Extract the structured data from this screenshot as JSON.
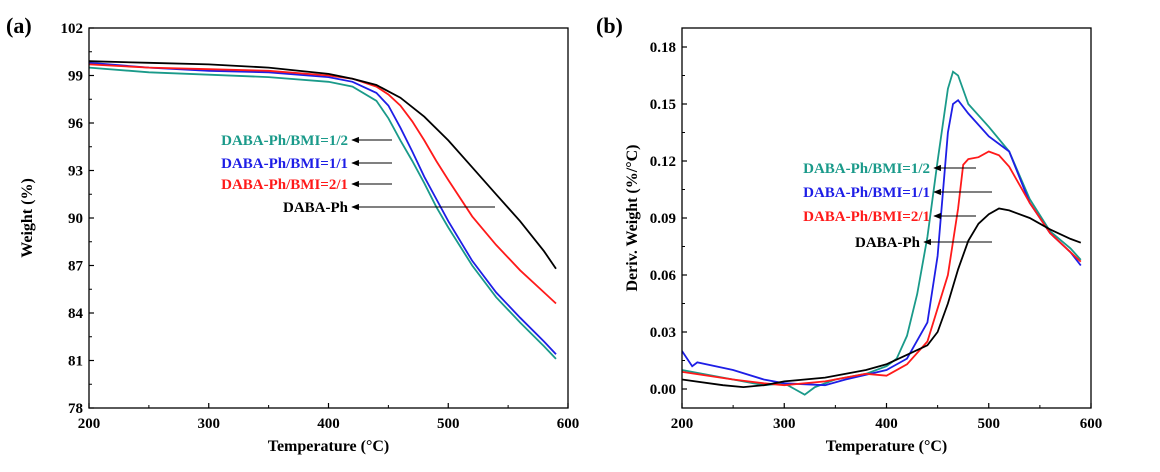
{
  "chart_data": [
    {
      "type": "line",
      "panel_label": "(a)",
      "xlabel": "Temperature (°C)",
      "ylabel": "Weight (%)",
      "xlim": [
        200,
        600
      ],
      "ylim": [
        78,
        102
      ],
      "x_ticks": [
        200,
        300,
        400,
        500,
        600
      ],
      "y_ticks": [
        78,
        81,
        84,
        87,
        90,
        93,
        96,
        99,
        102
      ],
      "grid": false,
      "legend_placement": "center-left, arrows pointing to curves",
      "series": [
        {
          "name": "DABA-Ph/BMI=1/2",
          "color": "#1a9a8a",
          "points": [
            [
              200,
              99.5
            ],
            [
              250,
              99.2
            ],
            [
              300,
              99.05
            ],
            [
              350,
              98.9
            ],
            [
              400,
              98.6
            ],
            [
              420,
              98.3
            ],
            [
              440,
              97.4
            ],
            [
              450,
              96.3
            ],
            [
              460,
              94.9
            ],
            [
              470,
              93.6
            ],
            [
              480,
              92.2
            ],
            [
              490,
              90.7
            ],
            [
              500,
              89.4
            ],
            [
              520,
              87.0
            ],
            [
              540,
              85.0
            ],
            [
              560,
              83.4
            ],
            [
              580,
              81.9
            ],
            [
              590,
              81.1
            ]
          ]
        },
        {
          "name": "DABA-Ph/BMI=1/1",
          "color": "#1e1ee6",
          "points": [
            [
              200,
              99.8
            ],
            [
              250,
              99.5
            ],
            [
              300,
              99.3
            ],
            [
              350,
              99.2
            ],
            [
              400,
              98.9
            ],
            [
              420,
              98.6
            ],
            [
              440,
              97.9
            ],
            [
              450,
              97.1
            ],
            [
              460,
              95.7
            ],
            [
              470,
              94.2
            ],
            [
              480,
              92.6
            ],
            [
              490,
              91.2
            ],
            [
              500,
              89.8
            ],
            [
              520,
              87.3
            ],
            [
              540,
              85.3
            ],
            [
              560,
              83.7
            ],
            [
              580,
              82.2
            ],
            [
              590,
              81.4
            ]
          ]
        },
        {
          "name": "DABA-Ph/BMI=2/1",
          "color": "#ff1a1a",
          "points": [
            [
              200,
              99.7
            ],
            [
              250,
              99.5
            ],
            [
              300,
              99.4
            ],
            [
              350,
              99.3
            ],
            [
              400,
              99.0
            ],
            [
              420,
              98.8
            ],
            [
              440,
              98.3
            ],
            [
              450,
              97.8
            ],
            [
              460,
              97.1
            ],
            [
              470,
              96.1
            ],
            [
              480,
              94.9
            ],
            [
              490,
              93.6
            ],
            [
              500,
              92.4
            ],
            [
              520,
              90.1
            ],
            [
              540,
              88.3
            ],
            [
              560,
              86.7
            ],
            [
              580,
              85.3
            ],
            [
              590,
              84.6
            ]
          ]
        },
        {
          "name": "DABA-Ph",
          "color": "#000000",
          "points": [
            [
              200,
              99.9
            ],
            [
              250,
              99.8
            ],
            [
              300,
              99.7
            ],
            [
              350,
              99.5
            ],
            [
              400,
              99.1
            ],
            [
              420,
              98.8
            ],
            [
              440,
              98.4
            ],
            [
              460,
              97.6
            ],
            [
              480,
              96.4
            ],
            [
              500,
              94.9
            ],
            [
              520,
              93.2
            ],
            [
              540,
              91.5
            ],
            [
              560,
              89.8
            ],
            [
              580,
              87.9
            ],
            [
              590,
              86.8
            ]
          ]
        }
      ]
    },
    {
      "type": "line",
      "panel_label": "(b)",
      "xlabel": "Temperature (°C)",
      "ylabel": "Deriv. Weight (%/°C)",
      "xlim": [
        200,
        600
      ],
      "ylim": [
        -0.01,
        0.19
      ],
      "x_ticks": [
        200,
        300,
        400,
        500,
        600
      ],
      "y_ticks": [
        "0.00",
        "0.03",
        "0.06",
        "0.09",
        "0.12",
        "0.15",
        "0.18"
      ],
      "grid": false,
      "legend_placement": "center-left, arrows pointing to curves",
      "series": [
        {
          "name": "DABA-Ph/BMI=1/2",
          "color": "#1a9a8a",
          "points": [
            [
              200,
              0.01
            ],
            [
              240,
              0.006
            ],
            [
              280,
              0.002
            ],
            [
              300,
              0.003
            ],
            [
              310,
              0.0
            ],
            [
              320,
              -0.003
            ],
            [
              330,
              0.001
            ],
            [
              350,
              0.005
            ],
            [
              380,
              0.008
            ],
            [
              400,
              0.012
            ],
            [
              410,
              0.016
            ],
            [
              420,
              0.028
            ],
            [
              430,
              0.05
            ],
            [
              440,
              0.08
            ],
            [
              450,
              0.12
            ],
            [
              460,
              0.158
            ],
            [
              465,
              0.167
            ],
            [
              470,
              0.165
            ],
            [
              480,
              0.15
            ],
            [
              500,
              0.138
            ],
            [
              520,
              0.125
            ],
            [
              540,
              0.1
            ],
            [
              560,
              0.083
            ],
            [
              580,
              0.074
            ],
            [
              590,
              0.068
            ]
          ]
        },
        {
          "name": "DABA-Ph/BMI=1/1",
          "color": "#1e1ee6",
          "points": [
            [
              200,
              0.02
            ],
            [
              205,
              0.016
            ],
            [
              210,
              0.012
            ],
            [
              215,
              0.014
            ],
            [
              250,
              0.01
            ],
            [
              280,
              0.005
            ],
            [
              300,
              0.003
            ],
            [
              340,
              0.002
            ],
            [
              360,
              0.005
            ],
            [
              400,
              0.01
            ],
            [
              420,
              0.016
            ],
            [
              440,
              0.035
            ],
            [
              450,
              0.07
            ],
            [
              460,
              0.135
            ],
            [
              465,
              0.15
            ],
            [
              470,
              0.152
            ],
            [
              480,
              0.145
            ],
            [
              500,
              0.133
            ],
            [
              520,
              0.125
            ],
            [
              540,
              0.098
            ],
            [
              560,
              0.082
            ],
            [
              580,
              0.072
            ],
            [
              590,
              0.065
            ]
          ]
        },
        {
          "name": "DABA-Ph/BMI=2/1",
          "color": "#ff1a1a",
          "points": [
            [
              200,
              0.009
            ],
            [
              250,
              0.005
            ],
            [
              280,
              0.003
            ],
            [
              300,
              0.002
            ],
            [
              340,
              0.004
            ],
            [
              380,
              0.008
            ],
            [
              400,
              0.007
            ],
            [
              420,
              0.013
            ],
            [
              440,
              0.025
            ],
            [
              460,
              0.06
            ],
            [
              470,
              0.095
            ],
            [
              475,
              0.118
            ],
            [
              480,
              0.121
            ],
            [
              490,
              0.122
            ],
            [
              500,
              0.125
            ],
            [
              510,
              0.123
            ],
            [
              520,
              0.117
            ],
            [
              540,
              0.098
            ],
            [
              560,
              0.082
            ],
            [
              580,
              0.072
            ],
            [
              590,
              0.067
            ]
          ]
        },
        {
          "name": "DABA-Ph",
          "color": "#000000",
          "points": [
            [
              200,
              0.005
            ],
            [
              240,
              0.002
            ],
            [
              260,
              0.001
            ],
            [
              280,
              0.002
            ],
            [
              300,
              0.004
            ],
            [
              340,
              0.006
            ],
            [
              380,
              0.01
            ],
            [
              400,
              0.013
            ],
            [
              420,
              0.018
            ],
            [
              440,
              0.023
            ],
            [
              450,
              0.03
            ],
            [
              460,
              0.045
            ],
            [
              470,
              0.063
            ],
            [
              480,
              0.078
            ],
            [
              490,
              0.087
            ],
            [
              500,
              0.092
            ],
            [
              510,
              0.095
            ],
            [
              520,
              0.094
            ],
            [
              540,
              0.09
            ],
            [
              560,
              0.084
            ],
            [
              580,
              0.079
            ],
            [
              590,
              0.077
            ]
          ]
        }
      ]
    }
  ]
}
